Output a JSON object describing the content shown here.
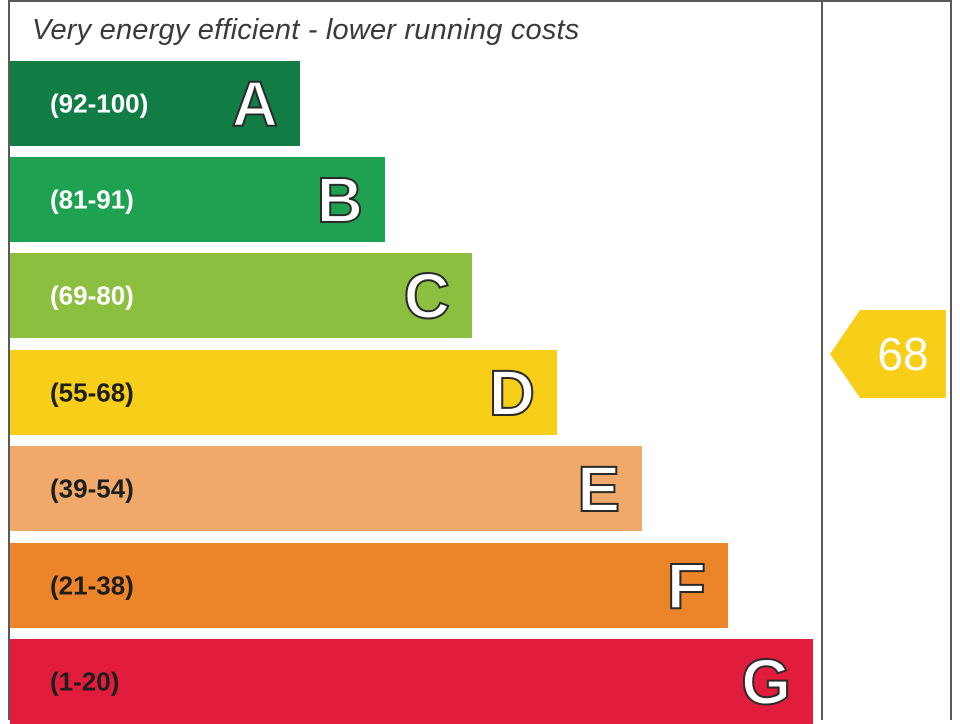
{
  "chart_data": {
    "type": "bar",
    "title": "Very energy efficient - lower running costs",
    "bands": [
      {
        "letter": "A",
        "range": "(92-100)",
        "min": 92,
        "max": 100,
        "color": "#127c45"
      },
      {
        "letter": "B",
        "range": "(81-91)",
        "min": 81,
        "max": 91,
        "color": "#1fa152"
      },
      {
        "letter": "C",
        "range": "(69-80)",
        "min": 69,
        "max": 80,
        "color": "#8cbf3f"
      },
      {
        "letter": "D",
        "range": "(55-68)",
        "min": 55,
        "max": 68,
        "color": "#f7cf18"
      },
      {
        "letter": "E",
        "range": "(39-54)",
        "min": 39,
        "max": 54,
        "color": "#f0a96b"
      },
      {
        "letter": "F",
        "range": "(21-38)",
        "min": 21,
        "max": 38,
        "color": "#ec8429"
      },
      {
        "letter": "G",
        "range": "(1-20)",
        "min": 1,
        "max": 20,
        "color": "#e11c3d"
      }
    ],
    "current_rating": {
      "value": 68,
      "label": "68",
      "band": "D",
      "color": "#f7cf18"
    }
  }
}
